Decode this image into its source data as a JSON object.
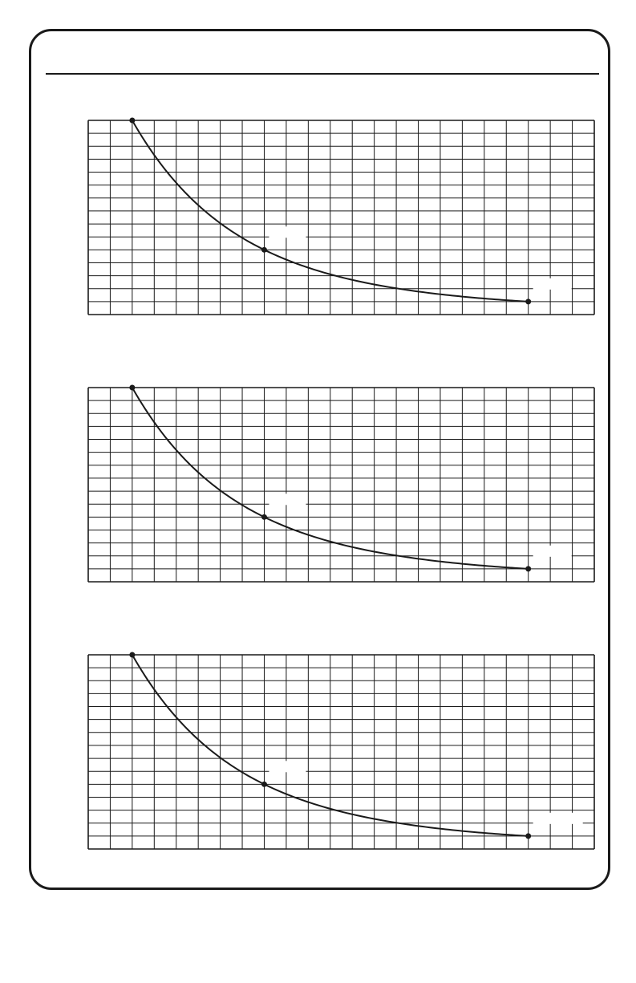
{
  "page": {
    "background": "#ffffff",
    "ink": "#1a1a1a"
  },
  "chart_data": [
    {
      "type": "line",
      "title": "",
      "xlabel": "",
      "ylabel": "",
      "grid": true,
      "xlim": [
        0,
        23
      ],
      "ylim": [
        0,
        15
      ],
      "curve_points": [
        {
          "x": 2,
          "y": 15
        },
        {
          "x": 8,
          "y": 5
        },
        {
          "x": 20,
          "y": 1
        }
      ],
      "marked_points": [
        {
          "x": 2,
          "y": 15
        },
        {
          "x": 8,
          "y": 5
        },
        {
          "x": 20,
          "y": 1
        }
      ]
    },
    {
      "type": "line",
      "title": "",
      "xlabel": "",
      "ylabel": "",
      "grid": true,
      "xlim": [
        0,
        23
      ],
      "ylim": [
        0,
        15
      ],
      "curve_points": [
        {
          "x": 2,
          "y": 15
        },
        {
          "x": 8,
          "y": 5
        },
        {
          "x": 20,
          "y": 1
        }
      ],
      "marked_points": [
        {
          "x": 2,
          "y": 15
        },
        {
          "x": 8,
          "y": 5
        },
        {
          "x": 20,
          "y": 1
        }
      ]
    },
    {
      "type": "line",
      "title": "",
      "xlabel": "",
      "ylabel": "",
      "grid": true,
      "xlim": [
        0,
        23
      ],
      "ylim": [
        0,
        15
      ],
      "curve_points": [
        {
          "x": 2,
          "y": 15
        },
        {
          "x": 8,
          "y": 5
        },
        {
          "x": 20,
          "y": 1
        }
      ],
      "marked_points": [
        {
          "x": 2,
          "y": 15
        },
        {
          "x": 8,
          "y": 5
        },
        {
          "x": 20,
          "y": 1
        }
      ]
    }
  ]
}
